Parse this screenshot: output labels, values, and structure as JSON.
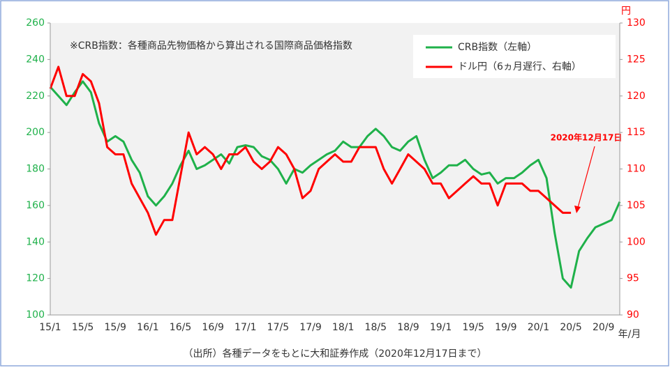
{
  "chart_data": {
    "type": "line",
    "note": "※CRB指数：各種商品先物価格から算出される国際商品価格指数",
    "annotation": "2020年12月17日",
    "source": "（出所）各種データをもとに大和証券作成（2020年12月17日まで）",
    "x_label": "年/月",
    "y2_label": "円",
    "categories": [
      "15/1",
      null,
      null,
      null,
      "15/5",
      null,
      null,
      null,
      "15/9",
      null,
      null,
      null,
      "16/1",
      null,
      null,
      null,
      "16/5",
      null,
      null,
      null,
      "16/9",
      null,
      null,
      null,
      "17/1",
      null,
      null,
      null,
      "17/5",
      null,
      null,
      null,
      "17/9",
      null,
      null,
      null,
      "18/1",
      null,
      null,
      null,
      "18/5",
      null,
      null,
      null,
      "18/9",
      null,
      null,
      null,
      "19/1",
      null,
      null,
      null,
      "19/5",
      null,
      null,
      null,
      "19/9",
      null,
      null,
      null,
      "20/1",
      null,
      null,
      null,
      "20/5",
      null,
      null,
      null,
      "20/9",
      null,
      null
    ],
    "series": [
      {
        "name": "CRB指数（左軸）",
        "color": "#1fb14a",
        "values": [
          225,
          220,
          215,
          222,
          228,
          222,
          205,
          195,
          198,
          195,
          185,
          178,
          165,
          160,
          165,
          172,
          182,
          190,
          180,
          182,
          185,
          188,
          183,
          192,
          193,
          192,
          187,
          185,
          180,
          172,
          180,
          178,
          182,
          185,
          188,
          190,
          195,
          192,
          192,
          198,
          202,
          198,
          192,
          190,
          195,
          198,
          185,
          175,
          178,
          182,
          182,
          185,
          180,
          177,
          178,
          172,
          175,
          175,
          178,
          182,
          185,
          175,
          145,
          120,
          115,
          135,
          142,
          148,
          150,
          152,
          162
        ]
      },
      {
        "name": "ドル円（6ヵ月遅行、右軸）",
        "color": "#ff0000",
        "axis": "y2",
        "values": [
          121,
          124,
          120,
          120,
          123,
          122,
          119,
          113,
          112,
          112,
          108,
          106,
          104,
          101,
          103,
          103,
          109,
          115,
          112,
          113,
          112,
          110,
          112,
          112,
          113,
          111,
          110,
          111,
          113,
          112,
          110,
          106,
          107,
          110,
          111,
          112,
          111,
          111,
          113,
          113,
          113,
          110,
          108,
          110,
          112,
          111,
          110,
          108,
          108,
          106,
          107,
          108,
          109,
          108,
          108,
          105,
          108,
          108,
          108,
          107,
          107,
          106,
          105,
          104,
          104,
          null,
          null,
          null,
          null,
          null,
          null
        ]
      }
    ],
    "ylim": [
      100,
      260
    ],
    "yticks": [
      100,
      120,
      140,
      160,
      180,
      200,
      220,
      240,
      260
    ],
    "y2lim": [
      90,
      130
    ],
    "y2ticks": [
      90,
      95,
      100,
      105,
      110,
      115,
      120,
      125,
      130
    ]
  }
}
